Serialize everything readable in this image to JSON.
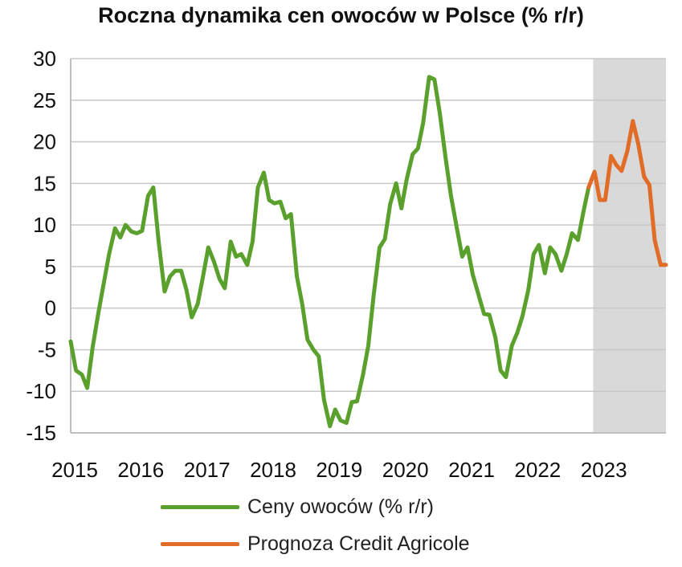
{
  "chart_data": {
    "type": "line",
    "title": "Roczna dynamika cen owoców w Polsce (% r/r)",
    "xlabel": "",
    "ylabel": "",
    "ylim": [
      -15,
      30
    ],
    "yticks": [
      30,
      25,
      20,
      15,
      10,
      5,
      0,
      -5,
      -10,
      -15
    ],
    "xlim": [
      2015.0,
      2024.0
    ],
    "xticks": [
      "2015",
      "2016",
      "2017",
      "2018",
      "2019",
      "2020",
      "2021",
      "2022",
      "2023"
    ],
    "grid": "horizontal",
    "legend_position": "bottom",
    "forecast_shade_x": [
      2022.9,
      2024.0
    ],
    "colors": {
      "actual": "#5aa02c",
      "forecast": "#e06c28",
      "shade": "#d9d9d9",
      "grid": "#c8c8c8"
    },
    "series": [
      {
        "name": "Ceny owoców (% r/r)",
        "points": [
          [
            2015.0,
            -4.0
          ],
          [
            2015.08,
            -7.5
          ],
          [
            2015.17,
            -8.0
          ],
          [
            2015.25,
            -9.6
          ],
          [
            2015.33,
            -4.8
          ],
          [
            2015.42,
            -0.5
          ],
          [
            2015.5,
            3.0
          ],
          [
            2015.58,
            6.5
          ],
          [
            2015.67,
            9.6
          ],
          [
            2015.75,
            8.5
          ],
          [
            2015.83,
            10.0
          ],
          [
            2015.92,
            9.2
          ],
          [
            2016.0,
            9.0
          ],
          [
            2016.08,
            9.3
          ],
          [
            2016.17,
            13.5
          ],
          [
            2016.25,
            14.5
          ],
          [
            2016.33,
            8.0
          ],
          [
            2016.42,
            2.0
          ],
          [
            2016.5,
            3.8
          ],
          [
            2016.58,
            4.5
          ],
          [
            2016.67,
            4.5
          ],
          [
            2016.75,
            2.2
          ],
          [
            2016.83,
            -1.1
          ],
          [
            2016.92,
            0.5
          ],
          [
            2017.0,
            3.8
          ],
          [
            2017.08,
            7.3
          ],
          [
            2017.17,
            5.5
          ],
          [
            2017.25,
            3.5
          ],
          [
            2017.33,
            2.4
          ],
          [
            2017.42,
            8.0
          ],
          [
            2017.5,
            6.2
          ],
          [
            2017.58,
            6.5
          ],
          [
            2017.67,
            5.2
          ],
          [
            2017.75,
            8.0
          ],
          [
            2017.83,
            14.5
          ],
          [
            2017.92,
            16.3
          ],
          [
            2018.0,
            13.0
          ],
          [
            2018.08,
            12.6
          ],
          [
            2018.17,
            12.8
          ],
          [
            2018.25,
            10.8
          ],
          [
            2018.33,
            11.3
          ],
          [
            2018.42,
            3.8
          ],
          [
            2018.5,
            0.5
          ],
          [
            2018.58,
            -3.8
          ],
          [
            2018.67,
            -5.0
          ],
          [
            2018.75,
            -5.8
          ],
          [
            2018.83,
            -11.0
          ],
          [
            2018.92,
            -14.2
          ],
          [
            2019.0,
            -12.2
          ],
          [
            2019.08,
            -13.5
          ],
          [
            2019.17,
            -13.8
          ],
          [
            2019.25,
            -11.3
          ],
          [
            2019.33,
            -11.2
          ],
          [
            2019.42,
            -8.0
          ],
          [
            2019.5,
            -4.5
          ],
          [
            2019.58,
            1.5
          ],
          [
            2019.67,
            7.3
          ],
          [
            2019.75,
            8.3
          ],
          [
            2019.83,
            12.5
          ],
          [
            2019.92,
            15.0
          ],
          [
            2020.0,
            12.0
          ],
          [
            2020.08,
            15.5
          ],
          [
            2020.17,
            18.5
          ],
          [
            2020.25,
            19.2
          ],
          [
            2020.33,
            22.3
          ],
          [
            2020.42,
            27.8
          ],
          [
            2020.5,
            27.5
          ],
          [
            2020.58,
            23.5
          ],
          [
            2020.67,
            18.0
          ],
          [
            2020.75,
            13.5
          ],
          [
            2020.83,
            10.0
          ],
          [
            2020.92,
            6.2
          ],
          [
            2021.0,
            7.3
          ],
          [
            2021.08,
            4.0
          ],
          [
            2021.17,
            1.5
          ],
          [
            2021.25,
            -0.7
          ],
          [
            2021.33,
            -0.8
          ],
          [
            2021.42,
            -3.5
          ],
          [
            2021.5,
            -7.5
          ],
          [
            2021.58,
            -8.3
          ],
          [
            2021.67,
            -4.5
          ],
          [
            2021.75,
            -3.0
          ],
          [
            2021.83,
            -1.0
          ],
          [
            2021.92,
            2.2
          ],
          [
            2022.0,
            6.5
          ],
          [
            2022.08,
            7.6
          ],
          [
            2022.17,
            4.2
          ],
          [
            2022.25,
            7.3
          ],
          [
            2022.33,
            6.5
          ],
          [
            2022.42,
            4.5
          ],
          [
            2022.5,
            6.5
          ],
          [
            2022.58,
            9.0
          ],
          [
            2022.67,
            8.2
          ],
          [
            2022.75,
            11.5
          ],
          [
            2022.83,
            14.5
          ]
        ]
      },
      {
        "name": "Prognoza Credit Agricole",
        "points": [
          [
            2022.83,
            14.5
          ],
          [
            2022.92,
            16.4
          ],
          [
            2023.0,
            13.0
          ],
          [
            2023.08,
            13.0
          ],
          [
            2023.17,
            18.3
          ],
          [
            2023.25,
            17.2
          ],
          [
            2023.33,
            16.5
          ],
          [
            2023.42,
            19.0
          ],
          [
            2023.5,
            22.5
          ],
          [
            2023.58,
            19.8
          ],
          [
            2023.67,
            15.8
          ],
          [
            2023.75,
            14.8
          ],
          [
            2023.83,
            8.2
          ],
          [
            2023.92,
            5.2
          ],
          [
            2024.0,
            5.2
          ]
        ]
      }
    ]
  }
}
